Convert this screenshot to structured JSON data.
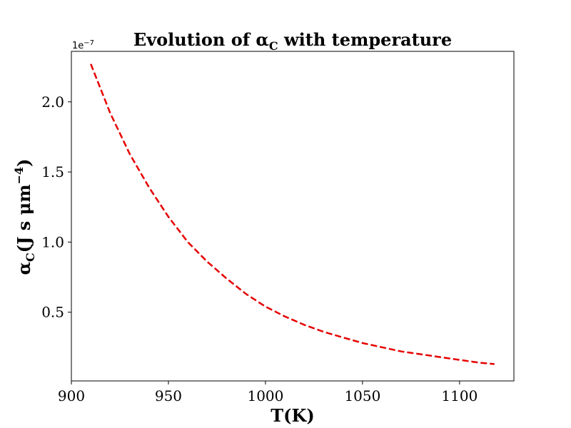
{
  "chart_data": {
    "type": "line",
    "title": {
      "prefix": "Evolution of ",
      "symbol": "α",
      "subscript": "C",
      "suffix": " with temperature"
    },
    "xlabel": "T(K)",
    "ylabel": {
      "symbol": "α",
      "subscript": "C",
      "unit_prefix": "(J s μm",
      "unit_superscript": "−4",
      "unit_suffix": ")"
    },
    "y_offset_text": {
      "base": "1e",
      "exponent": "−7"
    },
    "xlim": [
      900,
      1128
    ],
    "ylim": [
      0.01,
      2.36
    ],
    "x_ticks": [
      900,
      950,
      1000,
      1050,
      1100
    ],
    "x_tick_labels": [
      "900",
      "950",
      "1000",
      "1050",
      "1100"
    ],
    "y_ticks": [
      0.5,
      1.0,
      1.5,
      2.0
    ],
    "y_tick_labels": [
      "0.5",
      "1.0",
      "1.5",
      "2.0"
    ],
    "series": [
      {
        "name": "alpha_C",
        "color": "#e60000",
        "line_style": "dashed",
        "x": [
          910,
          920,
          930,
          940,
          950,
          960,
          970,
          980,
          990,
          1000,
          1010,
          1020,
          1030,
          1040,
          1050,
          1060,
          1070,
          1080,
          1090,
          1100,
          1110,
          1118
        ],
        "y": [
          2.27,
          1.92,
          1.63,
          1.39,
          1.18,
          1.0,
          0.86,
          0.74,
          0.63,
          0.54,
          0.47,
          0.41,
          0.36,
          0.32,
          0.28,
          0.25,
          0.22,
          0.2,
          0.18,
          0.16,
          0.14,
          0.13
        ]
      }
    ]
  }
}
